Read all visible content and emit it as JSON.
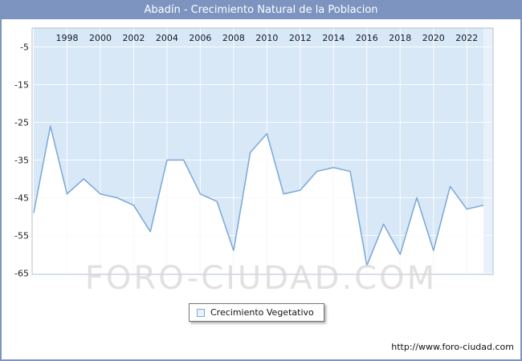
{
  "title": "Abadín - Crecimiento Natural de la Poblacion",
  "legend": {
    "label": "Crecimiento Vegetativo"
  },
  "watermark": "FORO-CIUDAD.COM",
  "footer_url": "http://www.foro-ciudad.com",
  "colors": {
    "header_bg": "#7d94c0",
    "area_fill": "#d9e8f7",
    "line": "#7fabd8",
    "right_band": "#e8f1fb",
    "grid_under": "#dfe5ec",
    "grid_over": "rgba(255,255,255,0.85)",
    "plot_border": "#b5c2cf",
    "tick_text": "#101828",
    "ytick_text": "#222222"
  },
  "chart_data": {
    "type": "area",
    "title": "Abadín - Crecimiento Natural de la Poblacion",
    "xlabel": "",
    "ylabel": "",
    "ylim": [
      -65,
      0
    ],
    "grid": true,
    "legend_position": "bottom",
    "x": [
      1996,
      1997,
      1998,
      1999,
      2000,
      2001,
      2002,
      2003,
      2004,
      2005,
      2006,
      2007,
      2008,
      2009,
      2010,
      2011,
      2012,
      2013,
      2014,
      2015,
      2016,
      2017,
      2018,
      2019,
      2020,
      2021,
      2022,
      2023
    ],
    "series": [
      {
        "name": "Crecimiento Vegetativo",
        "values": [
          -49,
          -26,
          -44,
          -40,
          -44,
          -45,
          -47,
          -54,
          -35,
          -35,
          -44,
          -46,
          -59,
          -33,
          -28,
          -44,
          -43,
          -38,
          -37,
          -38,
          -63,
          -52,
          -60,
          -45,
          -59,
          -42,
          -48,
          -47
        ]
      }
    ],
    "x_ticks": [
      1998,
      2000,
      2002,
      2004,
      2006,
      2008,
      2010,
      2012,
      2014,
      2016,
      2018,
      2020,
      2022
    ],
    "y_ticks": [
      -5,
      -15,
      -25,
      -35,
      -45,
      -55,
      -65
    ]
  }
}
